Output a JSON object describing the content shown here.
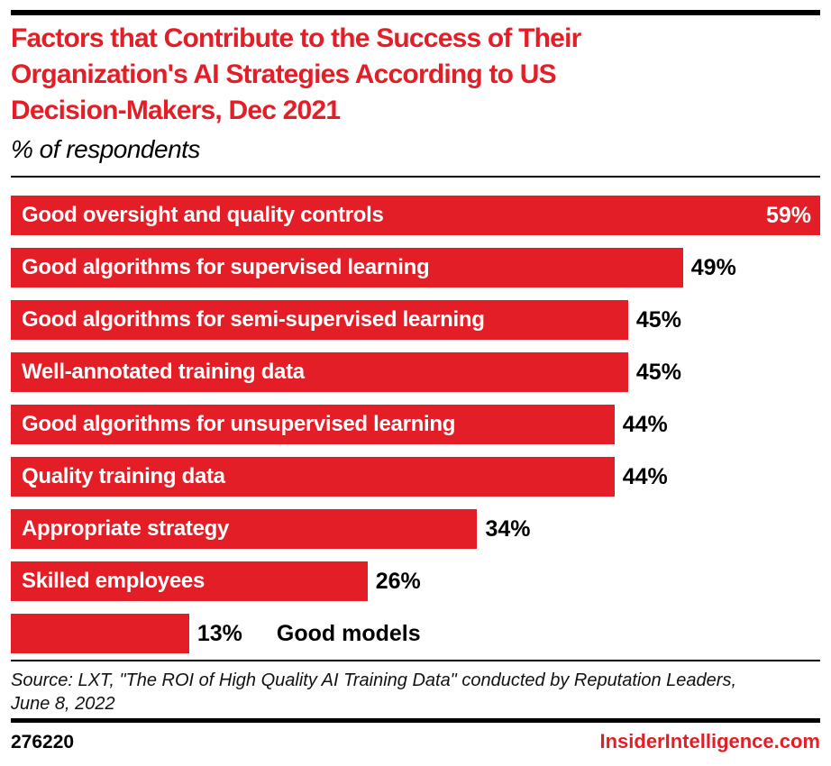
{
  "colors": {
    "accent": "#e31e26",
    "bar": "#e31e26",
    "bar_label": "#ffffff",
    "value_label": "#000000",
    "rule": "#000000"
  },
  "chart_data": {
    "type": "bar",
    "orientation": "horizontal",
    "title": "Factors that Contribute to the Success of Their Organization's AI Strategies According to US Decision-Makers, Dec 2021",
    "title_lines": [
      "Factors that Contribute to the Success of Their",
      "Organization's AI Strategies According to US",
      "Decision-Makers, Dec 2021"
    ],
    "subtitle": "% of respondents",
    "categories": [
      "Good oversight and quality controls",
      "Good algorithms for supervised learning",
      "Good algorithms for semi-supervised learning",
      "Well-annotated training data",
      "Good algorithms for unsupervised learning",
      "Quality training data",
      "Appropriate strategy",
      "Skilled employees",
      "Good models"
    ],
    "values": [
      59,
      49,
      45,
      45,
      44,
      44,
      34,
      26,
      13
    ],
    "xlim": [
      0,
      59
    ],
    "grid": false,
    "legend": false,
    "rows": [
      {
        "label": "Good oversight and quality controls",
        "value": 59,
        "pct": "59%",
        "label_position": "inside",
        "value_position": "inside"
      },
      {
        "label": "Good algorithms for supervised learning",
        "value": 49,
        "pct": "49%",
        "label_position": "inside",
        "value_position": "outside"
      },
      {
        "label": "Good algorithms for semi-supervised learning",
        "value": 45,
        "pct": "45%",
        "label_position": "inside",
        "value_position": "outside"
      },
      {
        "label": "Well-annotated training data",
        "value": 45,
        "pct": "45%",
        "label_position": "inside",
        "value_position": "outside"
      },
      {
        "label": "Good algorithms for unsupervised learning",
        "value": 44,
        "pct": "44%",
        "label_position": "inside",
        "value_position": "outside"
      },
      {
        "label": "Quality training data",
        "value": 44,
        "pct": "44%",
        "label_position": "inside",
        "value_position": "outside"
      },
      {
        "label": "Appropriate strategy",
        "value": 34,
        "pct": "34%",
        "label_position": "inside",
        "value_position": "outside"
      },
      {
        "label": "Skilled employees",
        "value": 26,
        "pct": "26%",
        "label_position": "inside",
        "value_position": "outside"
      },
      {
        "label": "Good models",
        "value": 13,
        "pct": "13%",
        "label_position": "outside",
        "value_position": "outside"
      }
    ]
  },
  "footer": {
    "source_lines": [
      "Source: LXT, \"The ROI of High Quality AI Training Data\" conducted by Reputation Leaders,",
      "June 8, 2022"
    ],
    "chart_id": "276220",
    "brand": "InsiderIntelligence.com"
  }
}
